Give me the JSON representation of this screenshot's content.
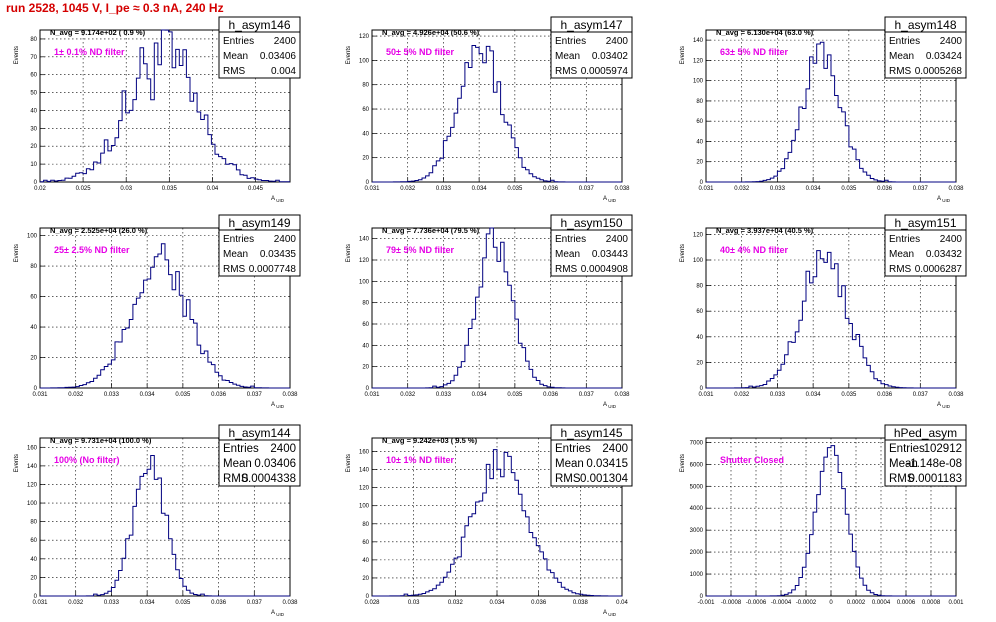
{
  "page": {
    "title": "run 2528,  1045 V, I_pe ≈ 0.3 nA, 240 Hz",
    "title_color": "#d40000"
  },
  "colors": {
    "histogram": "#000080",
    "filter_label": "#e600e6"
  },
  "chart_data": [
    {
      "type": "bar",
      "name": "h_asym146",
      "ylabel": "Events",
      "xlabel": "A_UID",
      "xlim": [
        0.02,
        0.049
      ],
      "ylim": [
        0,
        85
      ],
      "xticks": [
        "0.02",
        "0.025",
        "0.03",
        "0.035",
        "0.04",
        "0.045"
      ],
      "yticks": [
        0,
        10,
        20,
        30,
        40,
        50,
        60,
        70,
        80
      ],
      "navg": "N_avg = 9.174e+02 ( 0.9 %)",
      "filter": "1± 0.1% ND filter",
      "stats": {
        "title": "h_asym146",
        "entries": "2400",
        "mean": "0.03406",
        "rms": "0.004"
      },
      "shape": {
        "mean": 0.03406,
        "sigma": 0.004,
        "peak": 70,
        "noise": 0.35
      }
    },
    {
      "type": "bar",
      "name": "h_asym147",
      "ylabel": "Events",
      "xlabel": "A_UID",
      "xlim": [
        0.031,
        0.038
      ],
      "ylim": [
        0,
        125
      ],
      "xticks": [
        "0.031",
        "0.032",
        "0.033",
        "0.034",
        "0.035",
        "0.036",
        "0.037",
        "0.038"
      ],
      "yticks": [
        0,
        20,
        40,
        60,
        80,
        100,
        120
      ],
      "navg": "N_avg = 4.926e+04 (50.6 %)",
      "filter": "50± 5% ND filter",
      "stats": {
        "title": "h_asym147",
        "entries": "2400",
        "mean": "0.03402",
        "rms": "0.0005974"
      },
      "shape": {
        "mean": 0.03402,
        "sigma": 0.0005974,
        "peak": 112,
        "noise": 0.16
      }
    },
    {
      "type": "bar",
      "name": "h_asym148",
      "ylabel": "Events",
      "xlabel": "A_UID",
      "xlim": [
        0.031,
        0.038
      ],
      "ylim": [
        0,
        150
      ],
      "xticks": [
        "0.031",
        "0.032",
        "0.033",
        "0.034",
        "0.035",
        "0.036",
        "0.037",
        "0.038"
      ],
      "yticks": [
        0,
        20,
        40,
        60,
        80,
        100,
        120,
        140
      ],
      "navg": "N_avg = 6.130e+04 (63.0 %)",
      "filter": "63± 5% ND filter",
      "stats": {
        "title": "h_asym148",
        "entries": "2400",
        "mean": "0.03424",
        "rms": "0.0005268"
      },
      "shape": {
        "mean": 0.03424,
        "sigma": 0.0005268,
        "peak": 128,
        "noise": 0.14
      }
    },
    {
      "type": "bar",
      "name": "h_asym149",
      "ylabel": "Events",
      "xlabel": "A_UID",
      "xlim": [
        0.031,
        0.038
      ],
      "ylim": [
        0,
        105
      ],
      "xticks": [
        "0.031",
        "0.032",
        "0.033",
        "0.034",
        "0.035",
        "0.036",
        "0.037",
        "0.038"
      ],
      "yticks": [
        0,
        20,
        40,
        60,
        80,
        100
      ],
      "navg": "N_avg = 2.525e+04 (26.0 %)",
      "filter": "25± 2.5% ND filter",
      "stats": {
        "title": "h_asym149",
        "entries": "2400",
        "mean": "0.03435",
        "rms": "0.0007748"
      },
      "shape": {
        "mean": 0.03435,
        "sigma": 0.0007748,
        "peak": 86,
        "noise": 0.2
      }
    },
    {
      "type": "bar",
      "name": "h_asym150",
      "ylabel": "Events",
      "xlabel": "A_UID",
      "xlim": [
        0.031,
        0.038
      ],
      "ylim": [
        0,
        150
      ],
      "xticks": [
        "0.031",
        "0.032",
        "0.033",
        "0.034",
        "0.035",
        "0.036",
        "0.037",
        "0.038"
      ],
      "yticks": [
        0,
        20,
        40,
        60,
        80,
        100,
        120,
        140
      ],
      "navg": "N_avg = 7.736e+04 (79.5 %)",
      "filter": "79± 5% ND filter",
      "stats": {
        "title": "h_asym150",
        "entries": "2400",
        "mean": "0.03443",
        "rms": "0.0004908"
      },
      "shape": {
        "mean": 0.03443,
        "sigma": 0.0004908,
        "peak": 136,
        "noise": 0.14
      }
    },
    {
      "type": "bar",
      "name": "h_asym151",
      "ylabel": "Events",
      "xlabel": "A_UID",
      "xlim": [
        0.031,
        0.038
      ],
      "ylim": [
        0,
        125
      ],
      "xticks": [
        "0.031",
        "0.032",
        "0.033",
        "0.034",
        "0.035",
        "0.036",
        "0.037",
        "0.038"
      ],
      "yticks": [
        0,
        20,
        40,
        60,
        80,
        100,
        120
      ],
      "navg": "N_avg = 3.937e+04 (40.5 %)",
      "filter": "40± 4% ND filter",
      "stats": {
        "title": "h_asym151",
        "entries": "2400",
        "mean": "0.03432",
        "rms": "0.0006287"
      },
      "shape": {
        "mean": 0.03432,
        "sigma": 0.0006287,
        "peak": 108,
        "noise": 0.17
      }
    },
    {
      "type": "bar",
      "name": "h_asym144",
      "ylabel": "Events",
      "xlabel": "A_UID",
      "xlim": [
        0.031,
        0.038
      ],
      "ylim": [
        0,
        170
      ],
      "xticks": [
        "0.031",
        "0.032",
        "0.033",
        "0.034",
        "0.035",
        "0.036",
        "0.037",
        "0.038"
      ],
      "yticks": [
        0,
        20,
        40,
        60,
        80,
        100,
        120,
        140,
        160
      ],
      "navg": "N_avg = 9.731e+04 (100.0 %)",
      "filter": "100% (No filter)",
      "stats": {
        "title": "h_asym144",
        "entries": "2400",
        "mean": "0.03406",
        "rms": "0.0004338"
      },
      "shape": {
        "mean": 0.03406,
        "sigma": 0.0004338,
        "peak": 150,
        "noise": 0.13
      }
    },
    {
      "type": "bar",
      "name": "h_asym145",
      "ylabel": "Events",
      "xlabel": "A_UID",
      "xlim": [
        0.028,
        0.04
      ],
      "ylim": [
        0,
        175
      ],
      "xticks": [
        "0.028",
        "0.03",
        "0.032",
        "0.034",
        "0.036",
        "0.038",
        "0.04"
      ],
      "yticks": [
        0,
        20,
        40,
        60,
        80,
        100,
        120,
        140,
        160
      ],
      "navg": "N_avg = 9.242e+03 ( 9.5 %)",
      "filter": "10± 1% ND filter",
      "stats": {
        "title": "h_asym145",
        "entries": "2400",
        "mean": "0.03415",
        "rms": "0.001304"
      },
      "shape": {
        "mean": 0.03415,
        "sigma": 0.001304,
        "peak": 150,
        "noise": 0.12
      }
    },
    {
      "type": "bar",
      "name": "hPed_asym",
      "ylabel": "Events",
      "xlabel": "",
      "xlim": [
        -0.001,
        0.001
      ],
      "ylim": [
        0,
        7200
      ],
      "xticks": [
        "-0.001",
        "-0.0008",
        "-0.0006",
        "-0.0004",
        "-0.0002",
        "0",
        "0.0002",
        "0.0004",
        "0.0006",
        "0.0008",
        "0.001"
      ],
      "yticks": [
        0,
        1000,
        2000,
        3000,
        4000,
        5000,
        6000,
        7000
      ],
      "navg": "",
      "filter": "Shutter Closed",
      "stats": {
        "title": "hPed_asym",
        "entries": "102912",
        "mean": "-1.148e-08",
        "rms": "0.0001183"
      },
      "shape": {
        "mean": 0.0,
        "sigma": 0.0001183,
        "peak": 6800,
        "noise": 0.03
      }
    }
  ]
}
